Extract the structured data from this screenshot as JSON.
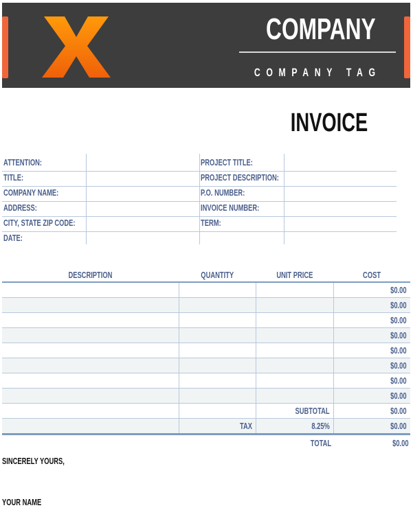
{
  "header": {
    "logo_letter": "X",
    "company": "COMPANY",
    "tag": "COMPANY TAG",
    "colors": {
      "background": "#3d3d3d",
      "accent": "#f0663a",
      "logo": "#f77f0a"
    }
  },
  "title": "INVOICE",
  "info": {
    "left": [
      "ATTENTION:",
      "TITLE:",
      "COMPANY NAME:",
      "ADDRESS:",
      "CITY, STATE ZIP CODE:",
      "DATE:"
    ],
    "right": [
      "PROJECT TITLE:",
      "PROJECT DESCRIPTION:",
      "P.O. NUMBER:",
      "INVOICE NUMBER:",
      "TERM:"
    ]
  },
  "items": {
    "columns": [
      "DESCRIPTION",
      "QUANTITY",
      "UNIT PRICE",
      "COST"
    ],
    "rows": [
      {
        "description": "",
        "quantity": "",
        "unit_price": "",
        "cost": "$0.00"
      },
      {
        "description": "",
        "quantity": "",
        "unit_price": "",
        "cost": "$0.00"
      },
      {
        "description": "",
        "quantity": "",
        "unit_price": "",
        "cost": "$0.00"
      },
      {
        "description": "",
        "quantity": "",
        "unit_price": "",
        "cost": "$0.00"
      },
      {
        "description": "",
        "quantity": "",
        "unit_price": "",
        "cost": "$0.00"
      },
      {
        "description": "",
        "quantity": "",
        "unit_price": "",
        "cost": "$0.00"
      },
      {
        "description": "",
        "quantity": "",
        "unit_price": "",
        "cost": "$0.00"
      },
      {
        "description": "",
        "quantity": "",
        "unit_price": "",
        "cost": "$0.00"
      }
    ]
  },
  "totals": {
    "subtotal_label": "SUBTOTAL",
    "subtotal": "$0.00",
    "tax_label": "TAX",
    "tax_rate": "8.25%",
    "tax": "$0.00",
    "total_label": "TOTAL",
    "total": "$0.00"
  },
  "closing": {
    "sincerely": "SINCERELY YOURS,",
    "name": "YOUR NAME"
  }
}
